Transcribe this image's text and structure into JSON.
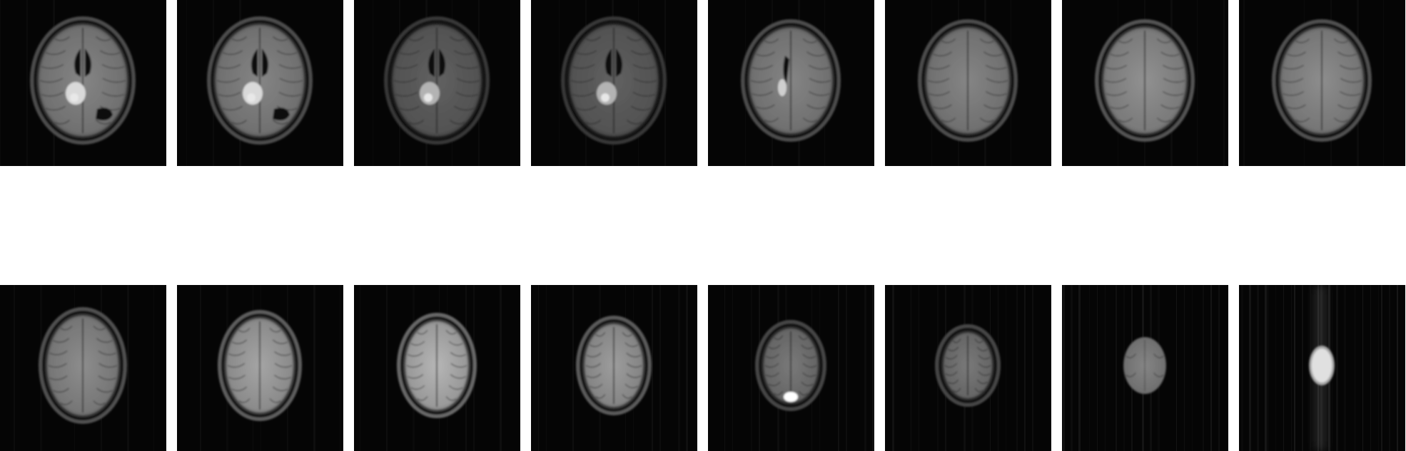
{
  "figure": {
    "rows": [
      {
        "slices": [
          {
            "id": "slice-1",
            "kind": "ventricles-lesion",
            "brightness": 0.55,
            "noise": 0.05
          },
          {
            "id": "slice-2",
            "kind": "ventricles-lesion",
            "brightness": 0.55,
            "noise": 0.05
          },
          {
            "id": "slice-3",
            "kind": "ventricles-lesion",
            "brightness": 0.4,
            "noise": 0.08
          },
          {
            "id": "slice-4",
            "kind": "ventricles-lesion",
            "brightness": 0.4,
            "noise": 0.08
          },
          {
            "id": "slice-5",
            "kind": "ventricle-small",
            "brightness": 0.55,
            "noise": 0.06
          },
          {
            "id": "slice-6",
            "kind": "upper-cortex",
            "brightness": 0.55,
            "noise": 0.06
          },
          {
            "id": "slice-7",
            "kind": "upper-cortex",
            "brightness": 0.6,
            "noise": 0.08
          },
          {
            "id": "slice-8",
            "kind": "upper-cortex",
            "brightness": 0.58,
            "noise": 0.08
          }
        ]
      },
      {
        "slices": [
          {
            "id": "slice-9",
            "kind": "vertex-gyri",
            "brightness": 0.58,
            "noise": 0.1
          },
          {
            "id": "slice-10",
            "kind": "vertex-gyri",
            "brightness": 0.68,
            "noise": 0.12
          },
          {
            "id": "slice-11",
            "kind": "vertex-gyri",
            "brightness": 0.75,
            "noise": 0.14
          },
          {
            "id": "slice-12",
            "kind": "vertex-gyri",
            "brightness": 0.65,
            "noise": 0.16
          },
          {
            "id": "slice-13",
            "kind": "vertex-small",
            "brightness": 0.5,
            "noise": 0.2
          },
          {
            "id": "slice-14",
            "kind": "vertex-small",
            "brightness": 0.5,
            "noise": 0.24
          },
          {
            "id": "slice-15",
            "kind": "blob",
            "brightness": 0.55,
            "noise": 0.3
          },
          {
            "id": "slice-16",
            "kind": "blob-bright",
            "brightness": 0.8,
            "noise": 0.4
          }
        ]
      }
    ]
  },
  "colors": {
    "background": "#ffffff",
    "tile": "#050505"
  }
}
